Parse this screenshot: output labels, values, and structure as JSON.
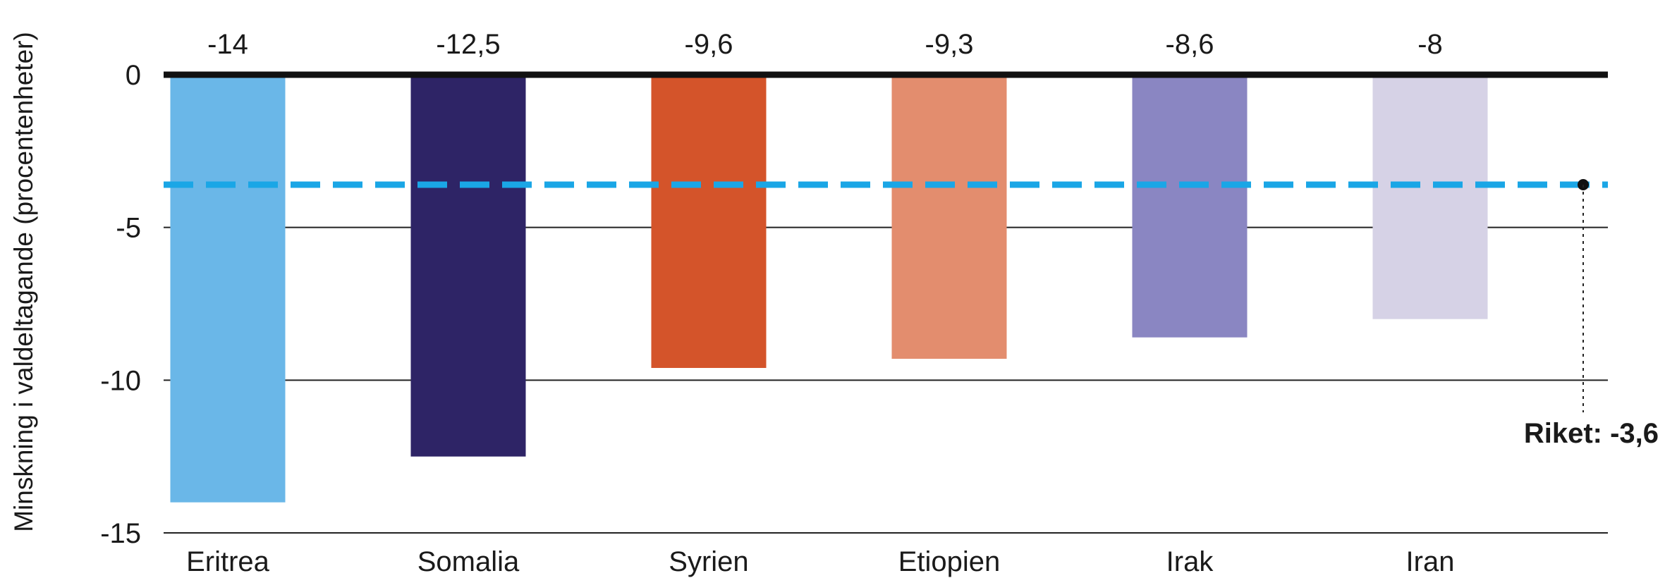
{
  "chart_data": {
    "type": "bar",
    "categories": [
      "Eritrea",
      "Somalia",
      "Syrien",
      "Etiopien",
      "Irak",
      "Iran"
    ],
    "values": [
      -14,
      -12.5,
      -9.6,
      -9.3,
      -8.6,
      -8
    ],
    "value_labels": [
      "-14",
      "-12,5",
      "-9,6",
      "-9,3",
      "-8,6",
      "-8"
    ],
    "bar_colors": [
      "#6ab7e8",
      "#2e2466",
      "#d4542a",
      "#e38d6e",
      "#8a86c2",
      "#d6d2e6"
    ],
    "ylabel": "Minskning i valdeltagande (procentenheter)",
    "ylim": [
      -15,
      0
    ],
    "yticks": [
      0,
      -5,
      -10,
      -15
    ],
    "ytick_labels": [
      "0",
      "-5",
      "-10",
      "-15"
    ],
    "grid": true,
    "reference_line": {
      "value": -3.6,
      "label": "Riket: -3,6",
      "color": "#1aa6e6",
      "style": "dashed"
    }
  }
}
